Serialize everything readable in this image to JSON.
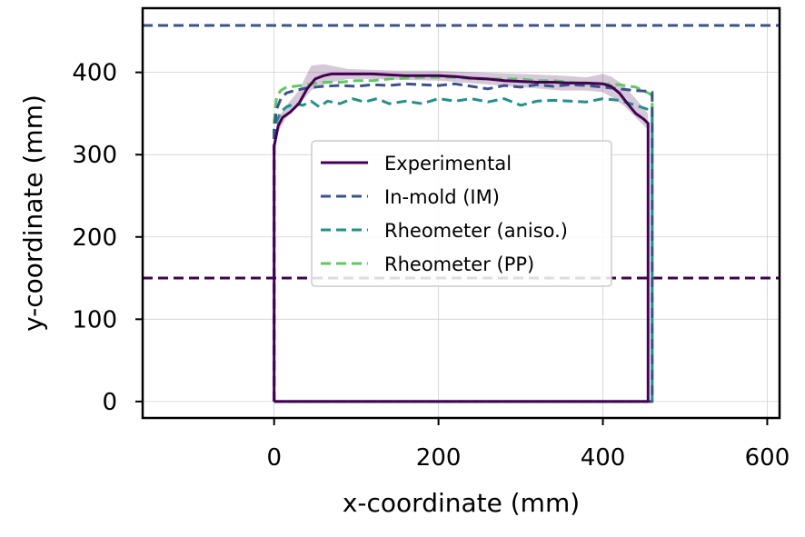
{
  "chart_data": {
    "type": "line",
    "title": "",
    "xlabel": "x-coordinate (mm)",
    "ylabel": "y-coordinate (mm)",
    "xlim": [
      -160,
      615
    ],
    "ylim": [
      -20,
      478
    ],
    "xticks": [
      0,
      200,
      400,
      600
    ],
    "yticks": [
      0,
      100,
      200,
      300,
      400
    ],
    "grid": true,
    "legend_position": "center",
    "reference_lines": [
      {
        "axis": "y",
        "value": 457,
        "color": "#3b528b",
        "style": "dashed"
      },
      {
        "axis": "y",
        "value": 150,
        "color": "#440154",
        "style": "dashed"
      }
    ],
    "series": [
      {
        "name": "Experimental",
        "color": "#440154",
        "style": "solid",
        "x": [
          0,
          0,
          2,
          5,
          10,
          20,
          30,
          40,
          50,
          60,
          70,
          80,
          100,
          120,
          140,
          160,
          180,
          200,
          220,
          240,
          260,
          280,
          300,
          320,
          340,
          360,
          380,
          400,
          410,
          420,
          430,
          440,
          450,
          455,
          455,
          455,
          0
        ],
        "y": [
          0,
          310,
          320,
          335,
          345,
          352,
          362,
          380,
          392,
          396,
          398,
          398,
          398,
          398,
          397,
          396,
          396,
          396,
          395,
          393,
          392,
          390,
          389,
          388,
          388,
          387,
          387,
          386,
          383,
          375,
          362,
          350,
          343,
          338,
          300,
          0,
          0
        ]
      },
      {
        "name": "In-mold (IM)",
        "color": "#3b528b",
        "style": "dashed",
        "x": [
          0,
          0,
          3,
          8,
          15,
          25,
          40,
          60,
          80,
          100,
          120,
          140,
          160,
          180,
          200,
          220,
          240,
          260,
          280,
          300,
          320,
          340,
          360,
          380,
          400,
          420,
          440,
          455,
          460,
          460,
          0
        ],
        "y": [
          0,
          330,
          355,
          368,
          375,
          378,
          381,
          383,
          384,
          383,
          385,
          384,
          386,
          385,
          384,
          386,
          383,
          380,
          384,
          382,
          385,
          383,
          385,
          384,
          382,
          380,
          378,
          377,
          376,
          0,
          0
        ]
      },
      {
        "name": "Rheometer (aniso.)",
        "color": "#21918c",
        "style": "dashed",
        "x": [
          0,
          0,
          3,
          8,
          15,
          25,
          35,
          45,
          55,
          65,
          80,
          95,
          110,
          125,
          140,
          160,
          180,
          200,
          220,
          240,
          260,
          280,
          300,
          320,
          340,
          360,
          380,
          400,
          420,
          440,
          455,
          460,
          460,
          0
        ],
        "y": [
          0,
          320,
          340,
          352,
          358,
          362,
          360,
          365,
          358,
          365,
          362,
          368,
          364,
          368,
          362,
          365,
          362,
          368,
          365,
          368,
          364,
          368,
          360,
          365,
          366,
          365,
          364,
          368,
          366,
          360,
          355,
          352,
          0,
          0
        ]
      },
      {
        "name": "Rheometer (PP)",
        "color": "#5ec962",
        "style": "dashed",
        "x": [
          0,
          0,
          3,
          8,
          15,
          25,
          40,
          60,
          80,
          100,
          120,
          140,
          160,
          180,
          200,
          220,
          240,
          260,
          280,
          300,
          320,
          340,
          360,
          380,
          400,
          420,
          440,
          455,
          460,
          460,
          0
        ],
        "y": [
          0,
          340,
          370,
          378,
          382,
          383,
          385,
          388,
          388,
          390,
          390,
          392,
          393,
          394,
          394,
          394,
          392,
          392,
          392,
          392,
          390,
          390,
          388,
          386,
          386,
          385,
          382,
          375,
          372,
          0,
          0
        ]
      }
    ],
    "bands": [
      {
        "series": "Experimental",
        "color": "#440154",
        "opacity": 0.22,
        "x": [
          0,
          5,
          15,
          30,
          45,
          60,
          70,
          90,
          120,
          150,
          200,
          250,
          300,
          350,
          380,
          400,
          410,
          425,
          440,
          455
        ],
        "upper": [
          320,
          345,
          360,
          378,
          408,
          410,
          408,
          404,
          403,
          402,
          402,
          400,
          398,
          396,
          394,
          398,
          395,
          385,
          368,
          350
        ],
        "lower": [
          300,
          328,
          345,
          360,
          378,
          385,
          388,
          392,
          392,
          391,
          390,
          386,
          382,
          378,
          378,
          376,
          370,
          360,
          345,
          330
        ]
      }
    ]
  }
}
